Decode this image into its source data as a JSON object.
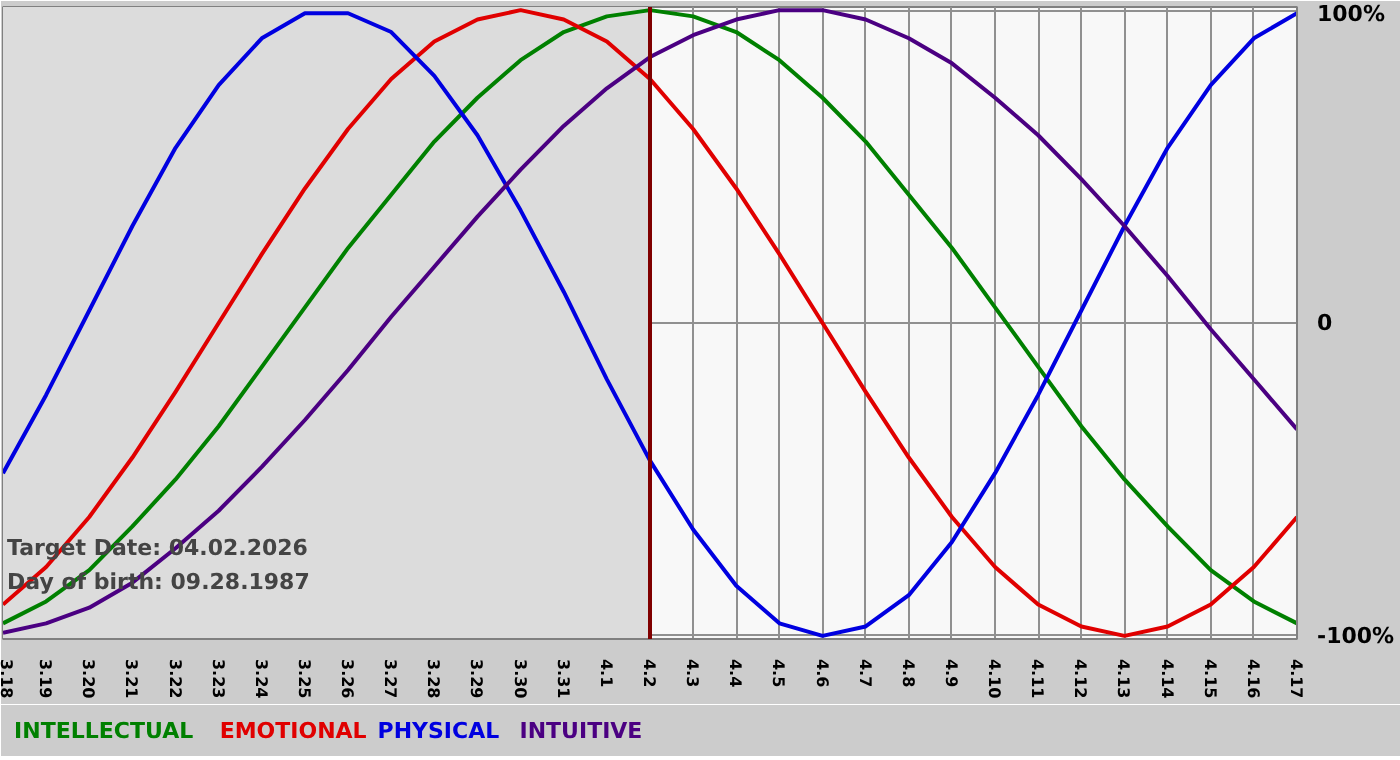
{
  "chart_data": {
    "type": "line",
    "categories": [
      "3.18",
      "3.19",
      "3.20",
      "3.21",
      "3.22",
      "3.23",
      "3.24",
      "3.25",
      "3.26",
      "3.27",
      "3.28",
      "3.29",
      "3.30",
      "3.31",
      "4.1",
      "4.2",
      "4.3",
      "4.4",
      "4.5",
      "4.6",
      "4.7",
      "4.8",
      "4.9",
      "4.10",
      "4.11",
      "4.12",
      "4.13",
      "4.14",
      "4.15",
      "4.16",
      "4.17"
    ],
    "series": [
      {
        "name": "INTELLECTUAL",
        "color": "#008000",
        "values": [
          -96,
          -89,
          -79,
          -65,
          -50,
          -33,
          -14,
          5,
          24,
          41,
          58,
          72,
          84,
          93,
          98,
          100,
          98,
          93,
          84,
          72,
          58,
          41,
          24,
          5,
          -14,
          -33,
          -50,
          -65,
          -79,
          -89,
          -96
        ]
      },
      {
        "name": "EMOTIONAL",
        "color": "#e00000",
        "values": [
          -90,
          -78,
          -62,
          -43,
          -22,
          0,
          22,
          43,
          62,
          78,
          90,
          97,
          100,
          97,
          90,
          78,
          62,
          43,
          22,
          0,
          -22,
          -43,
          -62,
          -78,
          -90,
          -97,
          -100,
          -97,
          -90,
          -78,
          -62
        ]
      },
      {
        "name": "PHYSICAL",
        "color": "#0000e0",
        "values": [
          -48,
          -23,
          4,
          31,
          56,
          76,
          91,
          99,
          99,
          93,
          79,
          60,
          36,
          10,
          -18,
          -44,
          -66,
          -84,
          -96,
          -100,
          -97,
          -87,
          -70,
          -48,
          -23,
          4,
          31,
          56,
          76,
          91,
          99
        ]
      },
      {
        "name": "INTUITIVE",
        "color": "#4b0082",
        "values": [
          -99,
          -96,
          -91,
          -83,
          -72,
          -60,
          -46,
          -31,
          -15,
          2,
          18,
          34,
          49,
          63,
          75,
          85,
          92,
          97,
          100,
          100,
          97,
          91,
          83,
          72,
          60,
          46,
          31,
          15,
          -2,
          -18,
          -34
        ]
      }
    ],
    "ylim": [
      -101,
      101
    ],
    "yticks": [
      {
        "value": -100,
        "label": "-100%"
      },
      0,
      {
        "value": 100,
        "label": "100%"
      }
    ],
    "ref_lines": [
      {
        "axis": "x",
        "value": "4.2",
        "color": "#800000"
      }
    ],
    "bands": [
      {
        "axis": "x",
        "from": "3.18",
        "to": "4.2",
        "color": "#dcdcdc"
      }
    ],
    "annotations": [
      "Target Date: 04.02.2026",
      "Day of birth: 09.28.1987"
    ],
    "grid": true,
    "legend": "bottom",
    "marker": "none",
    "line_style": "solid"
  }
}
